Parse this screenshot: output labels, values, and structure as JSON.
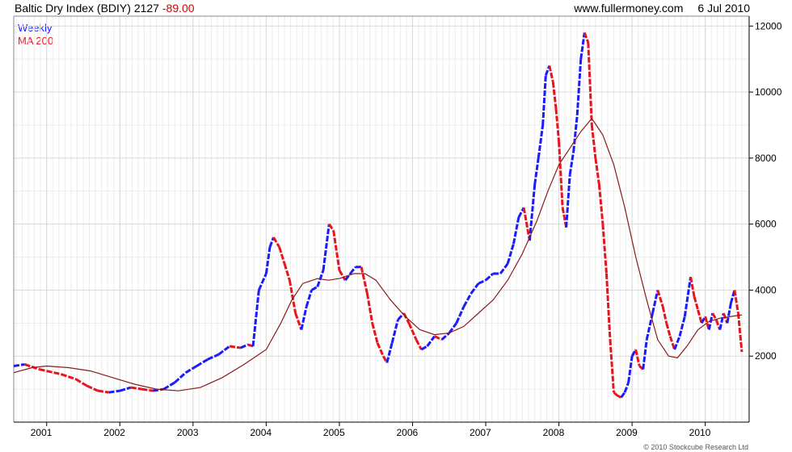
{
  "header": {
    "title": "Baltic Dry Index (BDIY)",
    "last": "2127",
    "change": "-89.00",
    "source": "www.fullermoney.com",
    "date": "6 Jul 2010"
  },
  "footer": {
    "copyright": "© 2010 Stockcube Research Ltd"
  },
  "colors": {
    "up": "#1a1aff",
    "down": "#e8141c",
    "ma": "#8b1a1a",
    "grid": "#d8d8d8",
    "axis": "#000000"
  },
  "chart_data": {
    "type": "line",
    "x_unit": "year",
    "xlim": [
      2000.55,
      2010.6
    ],
    "ylim": [
      0,
      12300
    ],
    "grid": true,
    "legend_position": "top-left",
    "x_ticks": [
      2001,
      2002,
      2003,
      2004,
      2005,
      2006,
      2007,
      2008,
      2009,
      2010
    ],
    "x_tick_labels": [
      "2001",
      "2002",
      "2003",
      "2004",
      "2005",
      "2006",
      "2007",
      "2008",
      "2009",
      "2010"
    ],
    "y_ticks": [
      2000,
      4000,
      6000,
      8000,
      10000,
      12000
    ],
    "y_tick_labels": [
      "2000",
      "4000",
      "6000",
      "8000",
      "10000",
      "12000"
    ],
    "series": [
      {
        "name": "Weekly",
        "x": [
          2000.55,
          2000.7,
          2000.9,
          2001.0,
          2001.2,
          2001.4,
          2001.55,
          2001.7,
          2001.85,
          2002.0,
          2002.15,
          2002.3,
          2002.45,
          2002.6,
          2002.75,
          2002.9,
          2003.05,
          2003.2,
          2003.35,
          2003.5,
          2003.65,
          2003.75,
          2003.82,
          2003.9,
          2004.0,
          2004.05,
          2004.1,
          2004.18,
          2004.25,
          2004.32,
          2004.4,
          2004.48,
          2004.55,
          2004.62,
          2004.7,
          2004.78,
          2004.86,
          2004.92,
          2005.0,
          2005.08,
          2005.15,
          2005.22,
          2005.3,
          2005.38,
          2005.45,
          2005.52,
          2005.6,
          2005.65,
          2005.72,
          2005.8,
          2005.88,
          2005.95,
          2006.05,
          2006.12,
          2006.2,
          2006.3,
          2006.4,
          2006.5,
          2006.6,
          2006.7,
          2006.8,
          2006.9,
          2007.0,
          2007.1,
          2007.2,
          2007.3,
          2007.38,
          2007.45,
          2007.52,
          2007.6,
          2007.67,
          2007.72,
          2007.78,
          2007.82,
          2007.87,
          2007.92,
          2007.96,
          2008.0,
          2008.05,
          2008.1,
          2008.15,
          2008.2,
          2008.25,
          2008.3,
          2008.35,
          2008.4,
          2008.45,
          2008.5,
          2008.55,
          2008.6,
          2008.65,
          2008.7,
          2008.75,
          2008.8,
          2008.85,
          2008.9,
          2008.95,
          2009.0,
          2009.05,
          2009.1,
          2009.15,
          2009.2,
          2009.28,
          2009.35,
          2009.42,
          2009.47,
          2009.52,
          2009.58,
          2009.65,
          2009.72,
          2009.8,
          2009.85,
          2009.9,
          2009.95,
          2010.0,
          2010.05,
          2010.1,
          2010.15,
          2010.2,
          2010.25,
          2010.3,
          2010.35,
          2010.4,
          2010.45,
          2010.5
        ],
        "y": [
          1700,
          1750,
          1600,
          1550,
          1450,
          1300,
          1100,
          950,
          900,
          950,
          1050,
          1000,
          950,
          1000,
          1200,
          1500,
          1700,
          1900,
          2050,
          2300,
          2250,
          2350,
          2300,
          4000,
          4500,
          5300,
          5600,
          5300,
          4800,
          4300,
          3300,
          2800,
          3500,
          4000,
          4100,
          4600,
          6000,
          5800,
          4600,
          4300,
          4500,
          4700,
          4700,
          3900,
          3000,
          2400,
          2000,
          1800,
          2400,
          3100,
          3300,
          3000,
          2500,
          2200,
          2300,
          2600,
          2500,
          2700,
          3000,
          3500,
          3900,
          4200,
          4300,
          4500,
          4500,
          4800,
          5400,
          6200,
          6500,
          5500,
          7200,
          8000,
          9000,
          10500,
          10800,
          10300,
          9500,
          8500,
          6500,
          5900,
          7500,
          8200,
          9300,
          11000,
          11800,
          11500,
          9000,
          8000,
          7200,
          6000,
          4500,
          2500,
          900,
          800,
          750,
          900,
          1200,
          2000,
          2200,
          1700,
          1600,
          2500,
          3300,
          4000,
          3500,
          3000,
          2600,
          2200,
          2600,
          3200,
          4400,
          3800,
          3400,
          3000,
          3200,
          2800,
          3300,
          3100,
          2800,
          3300,
          3000,
          3600,
          4000,
          3300,
          2127
        ]
      },
      {
        "name": "MA 200",
        "x": [
          2000.55,
          2000.8,
          2001.0,
          2001.3,
          2001.6,
          2001.9,
          2002.2,
          2002.5,
          2002.8,
          2003.1,
          2003.4,
          2003.7,
          2004.0,
          2004.2,
          2004.35,
          2004.5,
          2004.7,
          2004.85,
          2005.0,
          2005.2,
          2005.35,
          2005.5,
          2005.7,
          2005.9,
          2006.1,
          2006.3,
          2006.5,
          2006.7,
          2006.9,
          2007.1,
          2007.3,
          2007.5,
          2007.7,
          2007.85,
          2008.0,
          2008.15,
          2008.3,
          2008.45,
          2008.6,
          2008.75,
          2008.9,
          2009.05,
          2009.2,
          2009.35,
          2009.5,
          2009.62,
          2009.75,
          2009.9,
          2010.05,
          2010.2,
          2010.35,
          2010.5
        ],
        "y": [
          1500,
          1650,
          1700,
          1650,
          1550,
          1350,
          1150,
          1000,
          950,
          1050,
          1350,
          1750,
          2200,
          3000,
          3700,
          4200,
          4350,
          4300,
          4350,
          4500,
          4500,
          4300,
          3700,
          3200,
          2800,
          2650,
          2700,
          2900,
          3300,
          3700,
          4300,
          5100,
          6100,
          7000,
          7800,
          8300,
          8800,
          9200,
          8700,
          7800,
          6500,
          5000,
          3700,
          2500,
          2000,
          1950,
          2300,
          2800,
          3050,
          3150,
          3200,
          3250
        ]
      }
    ]
  }
}
